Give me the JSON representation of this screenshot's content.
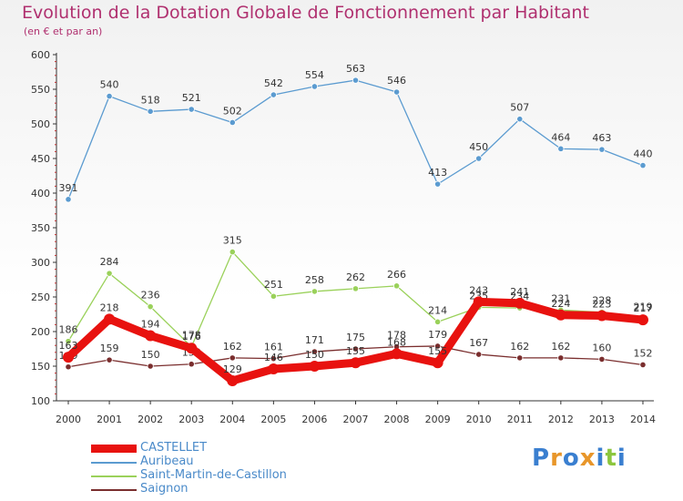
{
  "title": "Evolution de la Dotation Globale de Fonctionnement par Habitant",
  "subtitle": "(en € et par an)",
  "logo": {
    "text": "Proxiti",
    "letters": [
      "P",
      "r",
      "o",
      "x",
      "i",
      "t",
      "i"
    ],
    "colors": [
      "#3a7fd0",
      "#e8962a",
      "#3a7fd0",
      "#e8962a",
      "#3a7fd0",
      "#8cc63e",
      "#3a7fd0"
    ]
  },
  "chart_data": {
    "type": "line",
    "x": [
      "2000",
      "2001",
      "2002",
      "2003",
      "2004",
      "2005",
      "2006",
      "2007",
      "2008",
      "2009",
      "2010",
      "2011",
      "2012",
      "2013",
      "2014"
    ],
    "ylim": [
      100,
      600
    ],
    "yticks": [
      100,
      150,
      200,
      250,
      300,
      350,
      400,
      450,
      500,
      550,
      600
    ],
    "grid": false,
    "legend_position": "bottom-left",
    "series": [
      {
        "name": "CASTELLET",
        "color": "#e8120f",
        "values": [
          163,
          218,
          194,
          176,
          129,
          146,
          150,
          155,
          168,
          155,
          243,
          241,
          224,
          223,
          217
        ]
      },
      {
        "name": "Auribeau",
        "color": "#5b9bd0",
        "values": [
          391,
          540,
          518,
          521,
          502,
          542,
          554,
          563,
          546,
          413,
          450,
          507,
          464,
          463,
          440
        ]
      },
      {
        "name": "Saint-Martin-de-Castillon",
        "color": "#9ad15a",
        "values": [
          186,
          284,
          236,
          178,
          315,
          251,
          258,
          262,
          266,
          214,
          235,
          234,
          231,
          228,
          219
        ]
      },
      {
        "name": "Saignon",
        "color": "#7a2e2e",
        "values": [
          149,
          159,
          150,
          153,
          162,
          161,
          171,
          175,
          178,
          179,
          167,
          162,
          162,
          160,
          152
        ]
      }
    ]
  }
}
